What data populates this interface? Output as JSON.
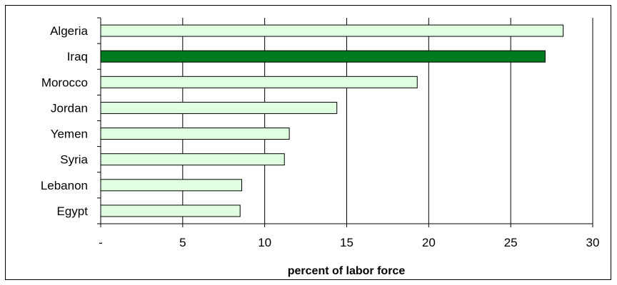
{
  "chart_data": {
    "type": "bar",
    "orientation": "horizontal",
    "categories": [
      "Algeria",
      "Iraq",
      "Morocco",
      "Jordan",
      "Yemen",
      "Syria",
      "Lebanon",
      "Egypt"
    ],
    "values": [
      28.2,
      27.1,
      19.3,
      14.4,
      11.5,
      11.2,
      8.6,
      8.5
    ],
    "xlabel": "percent of labor force",
    "ylabel": "",
    "xlim": [
      0,
      30
    ],
    "xticks": [
      0,
      5,
      10,
      15,
      20,
      25,
      30
    ],
    "xtick_labels": [
      "-",
      "5",
      "10",
      "15",
      "20",
      "25",
      "30"
    ],
    "grid": "vertical",
    "highlight": "Iraq",
    "colors": {
      "bar_fill": "#e0ffe0",
      "highlight_fill": "#007a1f",
      "bar_stroke": "#000000",
      "grid": "#000000"
    }
  }
}
